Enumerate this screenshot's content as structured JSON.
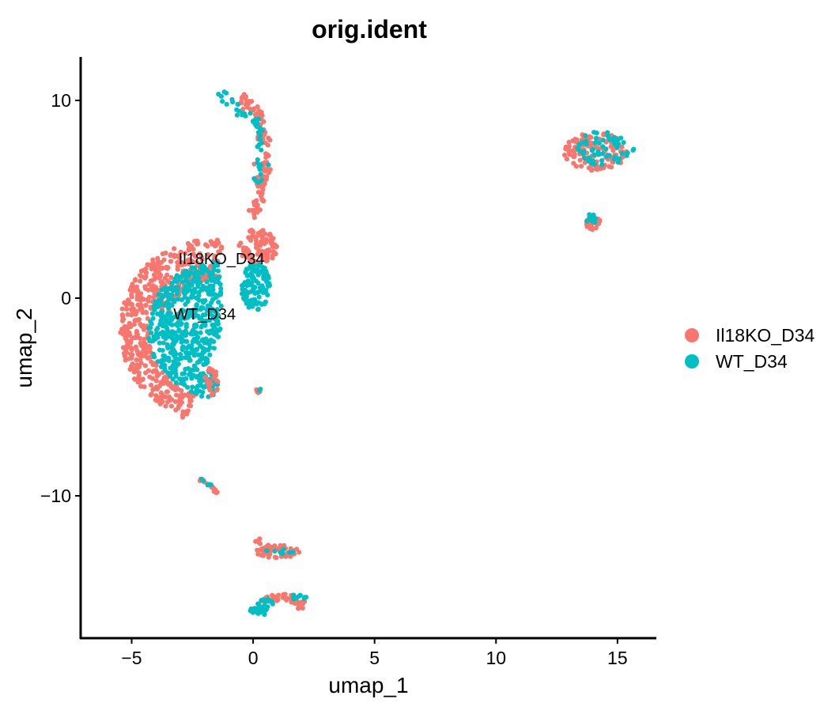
{
  "chart_data": {
    "type": "scatter",
    "title": "orig.ident",
    "xlabel": "umap_1",
    "ylabel": "umap_2",
    "xlim": [
      -7.1,
      16.6
    ],
    "ylim": [
      -17.2,
      12.2
    ],
    "xticks": [
      -5,
      0,
      5,
      10,
      15
    ],
    "yticks": [
      -10,
      0,
      10
    ],
    "x_tick_labels": [
      "−5",
      "0",
      "5",
      "10",
      "15"
    ],
    "y_tick_labels": [
      "−10",
      "0",
      "10"
    ],
    "grid": false,
    "legend_position": "right",
    "colors": {
      "Il18KO_D34": "#F8766D",
      "WT_D34": "#00BFC4"
    },
    "series": [
      {
        "name": "Il18KO_D34",
        "color": "#F8766D"
      },
      {
        "name": "WT_D34",
        "color": "#00BFC4"
      }
    ],
    "annotations": [
      {
        "text": "Il18KO_D34",
        "x": -1.3,
        "y": 2.0
      },
      {
        "text": "WT_D34",
        "x": -2.0,
        "y": -0.8
      }
    ],
    "clusters": [
      {
        "series": "Il18KO_D34",
        "shape": "arc",
        "cx": -1.3,
        "cy": -1.6,
        "rx": 4.2,
        "ry": 4.8,
        "r0": 0.72,
        "r1": 1.0,
        "a0": 90,
        "a1": 250,
        "n": 420
      },
      {
        "series": "Il18KO_D34",
        "shape": "arc",
        "cx": -1.3,
        "cy": -1.6,
        "rx": 4.2,
        "ry": 4.8,
        "r0": 0.55,
        "r1": 0.72,
        "a0": 95,
        "a1": 160,
        "n": 120
      },
      {
        "series": "WT_D34",
        "shape": "arc",
        "cx": -1.3,
        "cy": -1.6,
        "rx": 4.2,
        "ry": 4.8,
        "r0": 0.0,
        "r1": 0.72,
        "a0": 90,
        "a1": 250,
        "n": 520
      },
      {
        "series": "WT_D34",
        "shape": "ellipse",
        "cx": 0.1,
        "cy": 0.6,
        "rx": 0.6,
        "ry": 1.2,
        "n": 120
      },
      {
        "series": "Il18KO_D34",
        "shape": "ellipse",
        "cx": 0.2,
        "cy": 2.6,
        "rx": 0.8,
        "ry": 0.9,
        "n": 90
      },
      {
        "series": "WT_D34",
        "shape": "ellipse",
        "cx": -1.9,
        "cy": -4.4,
        "rx": 0.45,
        "ry": 0.7,
        "n": 30
      },
      {
        "series": "Il18KO_D34",
        "shape": "ellipse",
        "cx": -1.7,
        "cy": -4.3,
        "rx": 0.3,
        "ry": 0.8,
        "n": 25
      },
      {
        "series": "Il18KO_D34",
        "shape": "path",
        "pts": [
          [
            -0.5,
            10.2
          ],
          [
            0.2,
            9.4
          ],
          [
            0.5,
            8.0
          ],
          [
            0.4,
            6.5
          ],
          [
            0.3,
            5.2
          ],
          [
            0.0,
            4.0
          ]
        ],
        "spread": 0.25,
        "n": 110
      },
      {
        "series": "WT_D34",
        "shape": "path",
        "pts": [
          [
            -1.3,
            10.3
          ],
          [
            -0.6,
            9.6
          ],
          [
            0.2,
            8.7
          ],
          [
            0.3,
            7.0
          ],
          [
            0.2,
            5.5
          ]
        ],
        "spread": 0.22,
        "n": 50
      },
      {
        "series": "Il18KO_D34",
        "shape": "ellipse",
        "cx": 14.1,
        "cy": 7.4,
        "rx": 1.3,
        "ry": 1.0,
        "n": 120
      },
      {
        "series": "WT_D34",
        "shape": "ellipse",
        "cx": 14.5,
        "cy": 7.6,
        "rx": 1.2,
        "ry": 0.9,
        "n": 60
      },
      {
        "series": "Il18KO_D34",
        "shape": "ellipse",
        "cx": 14.0,
        "cy": 3.8,
        "rx": 0.3,
        "ry": 0.35,
        "n": 35
      },
      {
        "series": "WT_D34",
        "shape": "ellipse",
        "cx": 13.9,
        "cy": 4.0,
        "rx": 0.25,
        "ry": 0.25,
        "n": 10
      },
      {
        "series": "Il18KO_D34",
        "shape": "ellipse",
        "cx": 0.2,
        "cy": -4.7,
        "rx": 0.1,
        "ry": 0.1,
        "n": 5
      },
      {
        "series": "WT_D34",
        "shape": "ellipse",
        "cx": 0.25,
        "cy": -4.6,
        "rx": 0.08,
        "ry": 0.08,
        "n": 2
      },
      {
        "series": "Il18KO_D34",
        "shape": "path",
        "pts": [
          [
            -2.2,
            -9.1
          ],
          [
            -1.5,
            -9.8
          ]
        ],
        "spread": 0.08,
        "n": 14
      },
      {
        "series": "WT_D34",
        "shape": "path",
        "pts": [
          [
            -2.2,
            -9.1
          ],
          [
            -1.7,
            -9.5
          ]
        ],
        "spread": 0.06,
        "n": 5
      },
      {
        "series": "Il18KO_D34",
        "shape": "ellipse",
        "cx": 1.0,
        "cy": -12.8,
        "rx": 0.9,
        "ry": 0.35,
        "n": 60
      },
      {
        "series": "Il18KO_D34",
        "shape": "ellipse",
        "cx": 0.2,
        "cy": -12.3,
        "rx": 0.2,
        "ry": 0.15,
        "n": 6
      },
      {
        "series": "WT_D34",
        "shape": "ellipse",
        "cx": 1.1,
        "cy": -12.8,
        "rx": 0.6,
        "ry": 0.2,
        "n": 8
      },
      {
        "series": "Il18KO_D34",
        "shape": "arc",
        "cx": 1.2,
        "cy": -15.8,
        "rx": 1.1,
        "ry": 0.85,
        "r0": 0.6,
        "r1": 1.0,
        "a0": 10,
        "a1": 170,
        "n": 55
      },
      {
        "series": "WT_D34",
        "shape": "arc",
        "cx": 1.2,
        "cy": -15.8,
        "rx": 1.1,
        "ry": 0.85,
        "r0": 0.5,
        "r1": 1.0,
        "a0": 120,
        "a1": 200,
        "n": 25
      },
      {
        "series": "WT_D34",
        "shape": "ellipse",
        "cx": 0.2,
        "cy": -15.8,
        "rx": 0.4,
        "ry": 0.15,
        "n": 15
      },
      {
        "series": "WT_D34",
        "shape": "ellipse",
        "cx": 1.8,
        "cy": -15.1,
        "rx": 0.4,
        "ry": 0.15,
        "n": 12
      }
    ]
  }
}
